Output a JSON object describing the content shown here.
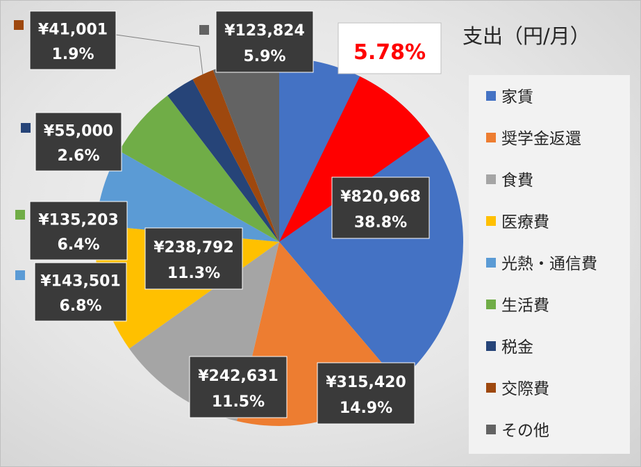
{
  "chart_data": {
    "type": "pie",
    "title": "支出（円/月）",
    "callout": "5.78%",
    "legend_position": "right",
    "slices": [
      {
        "name": "家賃",
        "value": 820968,
        "value_label": "¥820,968",
        "percent_label": "38.8%",
        "color": "#4472c4"
      },
      {
        "name": "奨学金返還",
        "value": 315420,
        "value_label": "¥315,420",
        "percent_label": "14.9%",
        "color": "#ed7d31"
      },
      {
        "name": "食費",
        "value": 242631,
        "value_label": "¥242,631",
        "percent_label": "11.5%",
        "color": "#a5a5a5"
      },
      {
        "name": "医療費",
        "value": 238792,
        "value_label": "¥238,792",
        "percent_label": "11.3%",
        "color": "#ffc000"
      },
      {
        "name": "光熱・通信費",
        "value": 143501,
        "value_label": "¥143,501",
        "percent_label": "6.8%",
        "color": "#5b9bd5"
      },
      {
        "name": "生活費",
        "value": 135203,
        "value_label": "¥135,203",
        "percent_label": "6.4%",
        "color": "#70ad47"
      },
      {
        "name": "税金",
        "value": 55000,
        "value_label": "¥55,000",
        "percent_label": "2.6%",
        "color": "#264478"
      },
      {
        "name": "交際費",
        "value": 41001,
        "value_label": "¥41,001",
        "percent_label": "1.9%",
        "color": "#9e480e"
      },
      {
        "name": "その他",
        "value": 123824,
        "value_label": "¥123,824",
        "percent_label": "5.9%",
        "color": "#636363"
      }
    ],
    "highlight_wedge": {
      "color": "#ff0000",
      "start_deg": 26,
      "end_deg": 55
    }
  }
}
